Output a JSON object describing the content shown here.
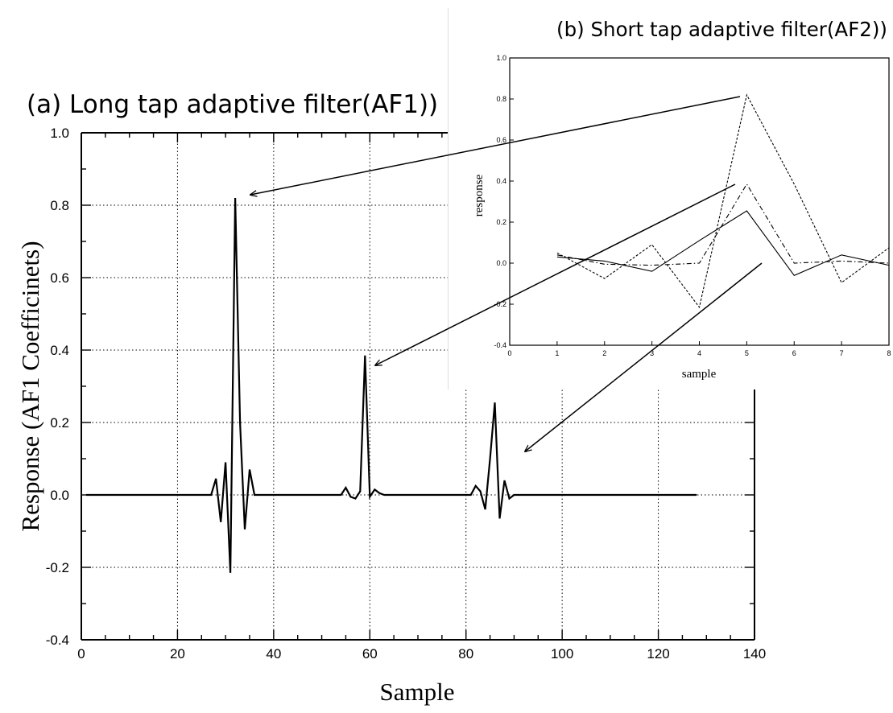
{
  "chart_data": [
    {
      "type": "line",
      "title": "(a) Long tap adaptive filter(AF1))",
      "xlabel": "Sample",
      "ylabel": "Response (AF1 Coefficinets)",
      "xlim": [
        0,
        140
      ],
      "ylim": [
        -0.4,
        1.0
      ],
      "xticks": [
        "0",
        "20",
        "40",
        "60",
        "80",
        "100",
        "120",
        "140"
      ],
      "yticks": [
        "-0.4",
        "-0.2",
        "0.0",
        "0.2",
        "0.4",
        "0.6",
        "0.8",
        "1.0"
      ],
      "grid": true,
      "series": [
        {
          "x": [
            1,
            27,
            28,
            29,
            30,
            31,
            32,
            33,
            34,
            35,
            36,
            54,
            55,
            56,
            57,
            58,
            59,
            60,
            61,
            62,
            63,
            81,
            82,
            83,
            84,
            85,
            86,
            87,
            88,
            89,
            90,
            128
          ],
          "y": [
            0,
            0,
            0.045,
            -0.075,
            0.09,
            -0.215,
            0.82,
            0.2,
            -0.095,
            0.07,
            0,
            0,
            0.02,
            -0.005,
            -0.01,
            0.01,
            0.385,
            -0.005,
            0.015,
            0.005,
            0,
            0,
            0.025,
            0.01,
            -0.04,
            0.1,
            0.255,
            -0.065,
            0.04,
            -0.01,
            0,
            0
          ]
        }
      ]
    },
    {
      "type": "line",
      "title": "(b) Short tap adaptive filter(AF2))",
      "xlabel": "sample",
      "ylabel": "response",
      "xlim": [
        0,
        8
      ],
      "ylim": [
        -0.4,
        1.0
      ],
      "xticks": [
        "0",
        "1",
        "2",
        "3",
        "4",
        "5",
        "6",
        "7",
        "8"
      ],
      "yticks": [
        "-0.4",
        "-0.2",
        "0.0",
        "0.2",
        "0.4",
        "0.6",
        "0.8",
        "1.0"
      ],
      "grid": false,
      "series": [
        {
          "style": "solid",
          "x": [
            1,
            2,
            3,
            4,
            5,
            6,
            7,
            8
          ],
          "y": [
            0.03,
            0.01,
            -0.04,
            0.11,
            0.255,
            -0.06,
            0.04,
            -0.01
          ]
        },
        {
          "style": "dashed",
          "x": [
            1,
            2,
            3,
            4,
            5,
            6,
            7,
            8
          ],
          "y": [
            0.05,
            -0.075,
            0.09,
            -0.215,
            0.82,
            0.385,
            -0.095,
            0.075
          ]
        },
        {
          "style": "dash-dot",
          "x": [
            1,
            2,
            3,
            4,
            5,
            6,
            7,
            8
          ],
          "y": [
            0.04,
            -0.005,
            -0.01,
            0.0,
            0.385,
            0.0,
            0.01,
            0.0
          ]
        }
      ]
    }
  ]
}
